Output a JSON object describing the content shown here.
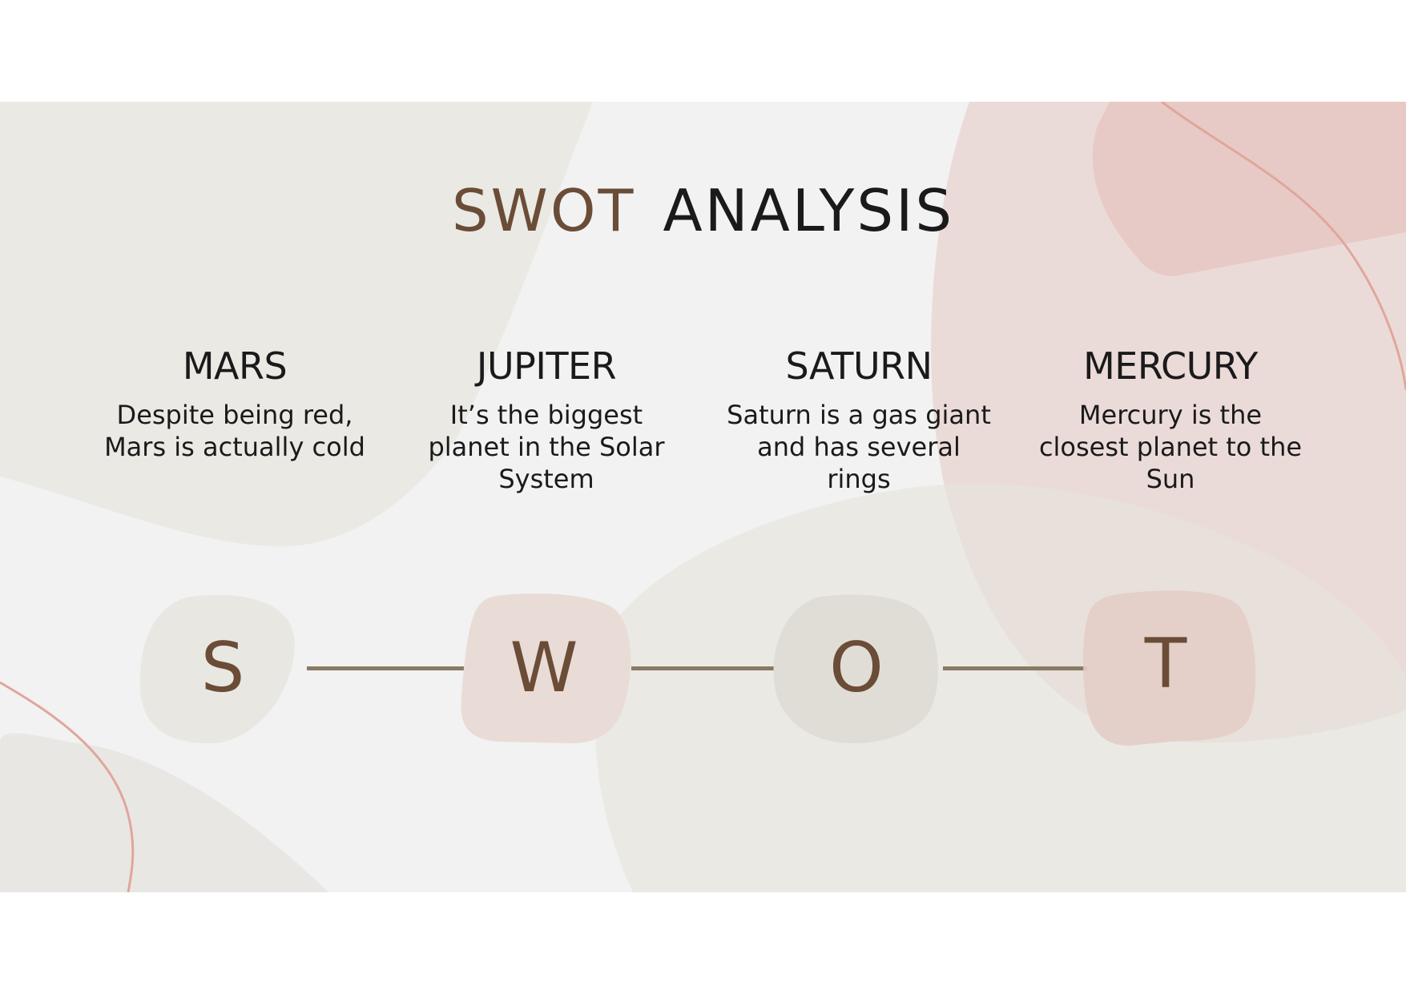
{
  "title": {
    "accent": "SWOT",
    "main": "ANALYSIS"
  },
  "columns": [
    {
      "heading": "MARS",
      "text": "Despite being red, Mars is actually cold",
      "letter": "S"
    },
    {
      "heading": "JUPITER",
      "text": "It’s the biggest planet in the Solar System",
      "letter": "W"
    },
    {
      "heading": "SATURN",
      "text": "Saturn is a gas giant and has several rings",
      "letter": "O"
    },
    {
      "heading": "MERCURY",
      "text": "Mercury is the closest planet to the Sun",
      "letter": "T"
    }
  ],
  "colors": {
    "accent_brown": "#6b4c36",
    "text_dark": "#1a1a1a",
    "connector": "#8a7a64",
    "slide_background": "#f2f2f2",
    "pink_shape": "#e8d0cc",
    "beige_shape": "#e9e7e2",
    "pink_line": "#e0a69c"
  }
}
